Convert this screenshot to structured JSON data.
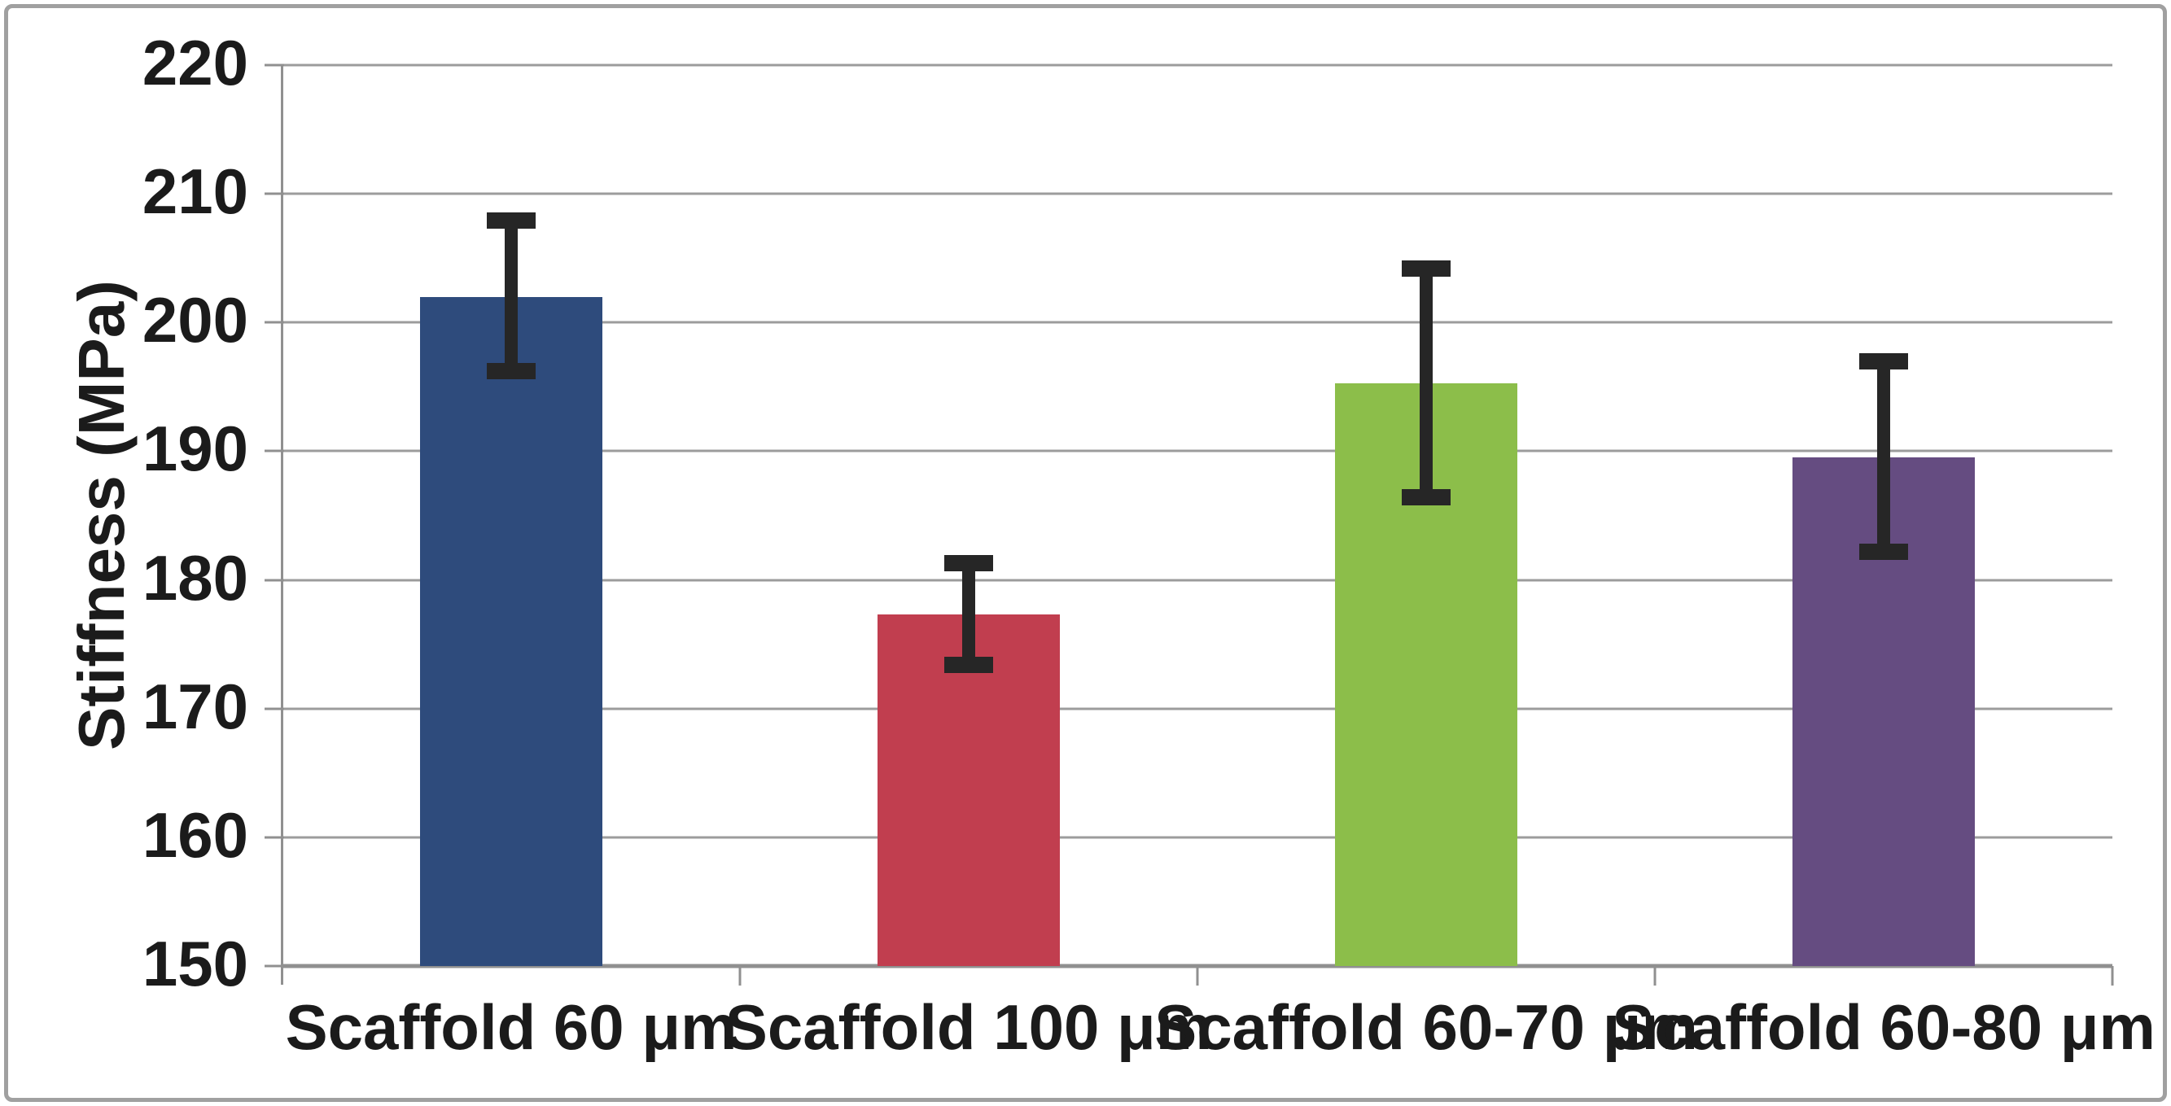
{
  "figure": {
    "background_color": "#ffffff",
    "frame_border_color": "#a0a0a0"
  },
  "chart_data": {
    "type": "bar",
    "title": "",
    "xlabel": "",
    "ylabel": "Stiffness (MPa)",
    "ylim": [
      150,
      220
    ],
    "yticks": [
      150,
      160,
      170,
      180,
      190,
      200,
      210,
      220
    ],
    "grid": true,
    "legend": "none",
    "categories": [
      "Scaffold 60 μm",
      "Scaffold 100 μm",
      "Scaffold 60-70 μm",
      "Scaffold 60-80 μm"
    ],
    "values": [
      202.0,
      177.3,
      195.3,
      189.5
    ],
    "error_low": [
      196.2,
      173.4,
      186.4,
      182.2
    ],
    "error_high": [
      207.9,
      181.3,
      204.2,
      197.0
    ],
    "bar_colors": [
      "#2e4b7c",
      "#c13e4f",
      "#8cbe4a",
      "#654c81"
    ],
    "error_bar_color": "#262626",
    "gridline_color": "#9c9c9c",
    "axis_color": "#909090",
    "text_color": "#1b1b1b"
  }
}
